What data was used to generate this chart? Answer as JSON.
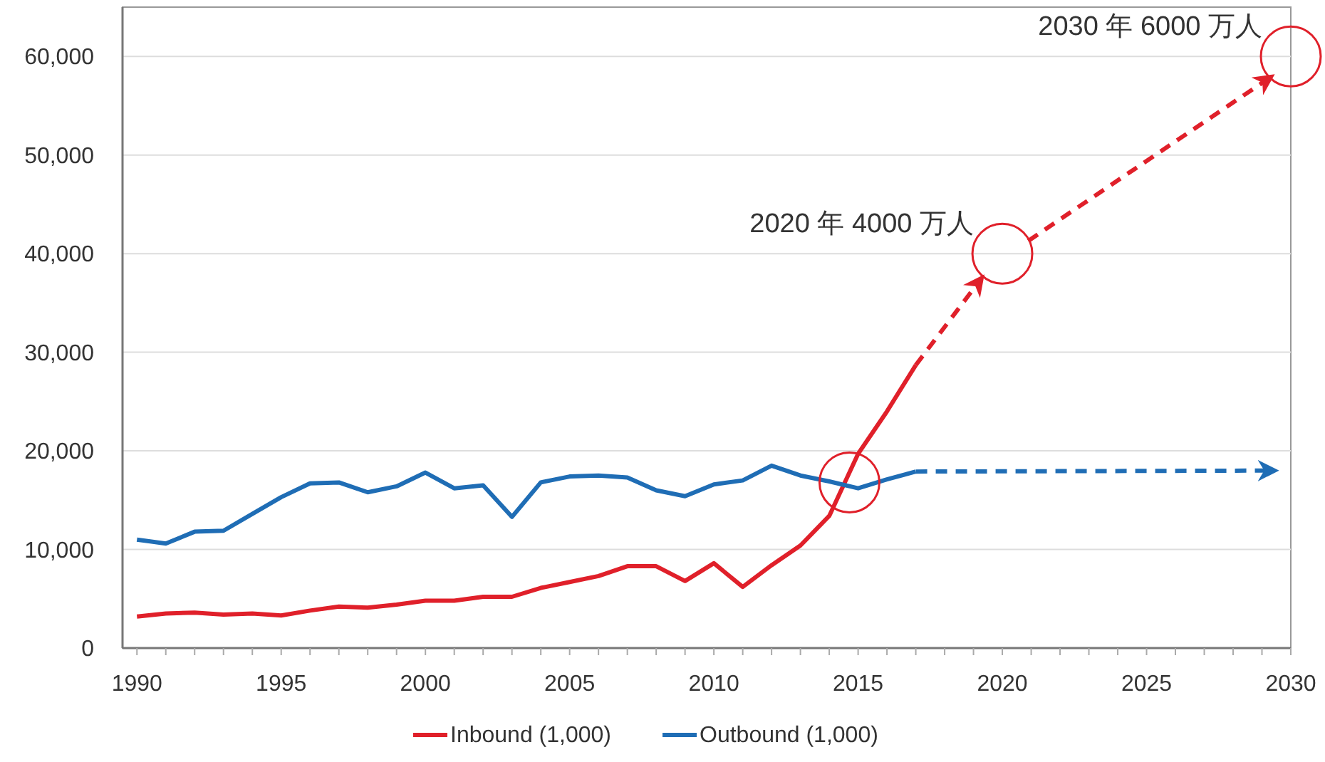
{
  "chart_data": {
    "type": "line",
    "xlim": [
      1989.5,
      2030
    ],
    "xticks": [
      1990,
      1995,
      2000,
      2005,
      2010,
      2015,
      2020,
      2025,
      2030
    ],
    "ylim": [
      0,
      65000
    ],
    "yticks": [
      {
        "value": 0,
        "label": "0"
      },
      {
        "value": 10000,
        "label": "10,000"
      },
      {
        "value": 20000,
        "label": "20,000"
      },
      {
        "value": 30000,
        "label": "30,000"
      },
      {
        "value": 40000,
        "label": "40,000"
      },
      {
        "value": 50000,
        "label": "50,000"
      },
      {
        "value": 60000,
        "label": "60,000"
      }
    ],
    "grid": "y",
    "legend": "bottom",
    "series": [
      {
        "name": "Inbound (1,000)",
        "color": "#e0202a",
        "x": [
          1990,
          1991,
          1992,
          1993,
          1994,
          1995,
          1996,
          1997,
          1998,
          1999,
          2000,
          2001,
          2002,
          2003,
          2004,
          2005,
          2006,
          2007,
          2008,
          2009,
          2010,
          2011,
          2012,
          2013,
          2014,
          2015,
          2016,
          2017
        ],
        "values": [
          3200,
          3500,
          3600,
          3400,
          3500,
          3300,
          3800,
          4200,
          4100,
          4400,
          4800,
          4800,
          5200,
          5200,
          6100,
          6700,
          7300,
          8300,
          8300,
          6800,
          8600,
          6200,
          8400,
          10400,
          13400,
          19700,
          24000,
          28700
        ]
      },
      {
        "name": "Outbound (1,000)",
        "color": "#1f6db5",
        "x": [
          1990,
          1991,
          1992,
          1993,
          1994,
          1995,
          1996,
          1997,
          1998,
          1999,
          2000,
          2001,
          2002,
          2003,
          2004,
          2005,
          2006,
          2007,
          2008,
          2009,
          2010,
          2011,
          2012,
          2013,
          2014,
          2015,
          2016,
          2017
        ],
        "values": [
          11000,
          10600,
          11800,
          11900,
          13600,
          15300,
          16700,
          16800,
          15800,
          16400,
          17800,
          16200,
          16500,
          13300,
          16800,
          17400,
          17500,
          17300,
          16000,
          15400,
          16600,
          17000,
          18500,
          17500,
          16900,
          16200,
          17100,
          17900
        ]
      },
      {
        "color": "#e0202a",
        "line_style": "dashed",
        "x": [
          2017,
          2019.2
        ],
        "values": [
          28700,
          37200
        ]
      },
      {
        "color": "#e0202a",
        "line_style": "dashed",
        "x": [
          2020.9,
          2029.2
        ],
        "values": [
          41300,
          57700
        ]
      },
      {
        "color": "#1f6db5",
        "line_style": "dashed",
        "x": [
          2017,
          2029.3
        ],
        "values": [
          17900,
          18000
        ]
      },
      {
        "type": "scatter",
        "marker": "circle",
        "color": "#e0202a",
        "x": [
          2014.7,
          2020,
          2030
        ],
        "values": [
          16800,
          40000,
          60000
        ]
      }
    ],
    "annotations": [
      {
        "text": "2020 年 4000 万人",
        "x": 2020,
        "y": 40000
      },
      {
        "text": "2030 年 6000 万人",
        "x": 2030,
        "y": 60000
      }
    ]
  }
}
